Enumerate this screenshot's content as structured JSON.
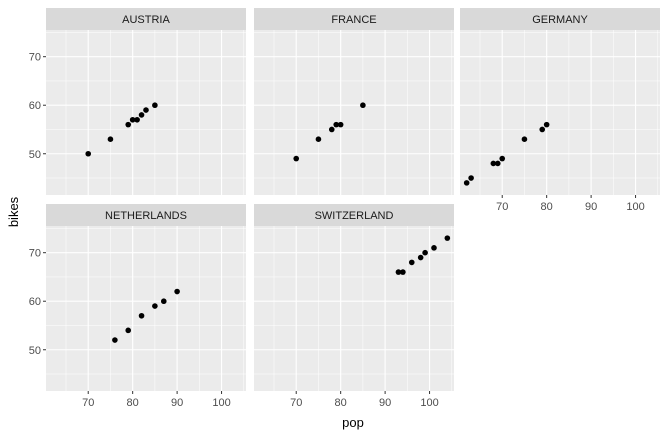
{
  "chart_data": {
    "type": "scatter",
    "layout": "facet_wrap",
    "ncol": 3,
    "xlabel": "pop",
    "ylabel": "bikes",
    "xlim": [
      60.5,
      105.5
    ],
    "ylim": [
      41.5,
      75.5
    ],
    "x_ticks": [
      70,
      80,
      90,
      100
    ],
    "y_ticks": [
      50,
      60,
      70
    ],
    "grid": true,
    "point_color": "#000000",
    "panel_color": "#ebebeb",
    "strip_color": "#d9d9d9",
    "panels": [
      {
        "label": "AUSTRIA",
        "points": [
          [
            70,
            50
          ],
          [
            75,
            53
          ],
          [
            79,
            56
          ],
          [
            80,
            57
          ],
          [
            81,
            57
          ],
          [
            82,
            58
          ],
          [
            83,
            59
          ],
          [
            85,
            60
          ]
        ]
      },
      {
        "label": "FRANCE",
        "points": [
          [
            70,
            49
          ],
          [
            75,
            53
          ],
          [
            78,
            55
          ],
          [
            79,
            56
          ],
          [
            80,
            56
          ],
          [
            85,
            60
          ]
        ]
      },
      {
        "label": "GERMANY",
        "points": [
          [
            62,
            44
          ],
          [
            63,
            45
          ],
          [
            68,
            48
          ],
          [
            69,
            48
          ],
          [
            70,
            49
          ],
          [
            75,
            53
          ],
          [
            79,
            55
          ],
          [
            80,
            56
          ]
        ]
      },
      {
        "label": "NETHERLANDS",
        "points": [
          [
            76,
            52
          ],
          [
            79,
            54
          ],
          [
            82,
            57
          ],
          [
            85,
            59
          ],
          [
            87,
            60
          ],
          [
            90,
            62
          ]
        ]
      },
      {
        "label": "SWITZERLAND",
        "points": [
          [
            93,
            66
          ],
          [
            94,
            66
          ],
          [
            96,
            68
          ],
          [
            98,
            69
          ],
          [
            99,
            70
          ],
          [
            101,
            71
          ],
          [
            104,
            73
          ]
        ]
      }
    ]
  }
}
